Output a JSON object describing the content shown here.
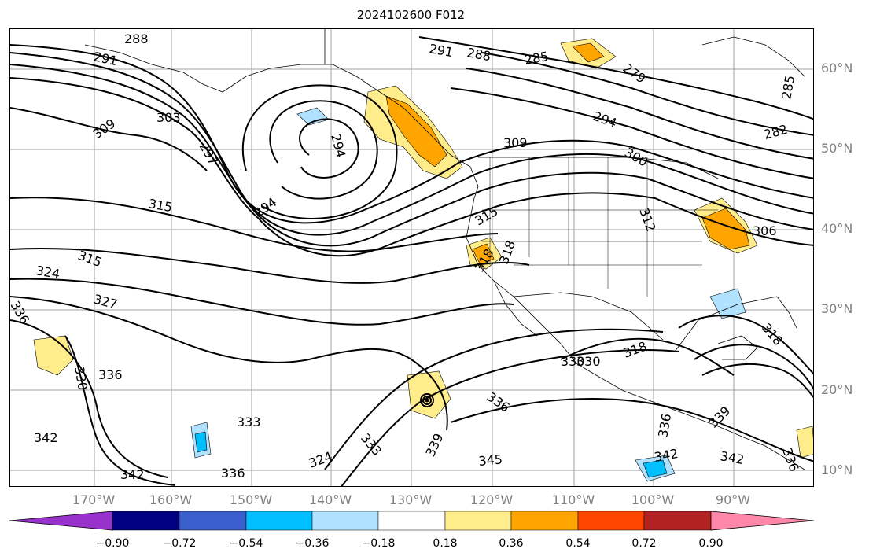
{
  "title": "2024102600 F012",
  "latitude_labels": [
    "60°N",
    "50°N",
    "40°N",
    "30°N",
    "20°N",
    "10°N"
  ],
  "longitude_labels": [
    "170°W",
    "160°W",
    "150°W",
    "140°W",
    "130°W",
    "120°W",
    "110°W",
    "100°W",
    "90°W"
  ],
  "colorbar": {
    "tick_labels": [
      "−0.90",
      "−0.72",
      "−0.54",
      "−0.36",
      "−0.18",
      "0.18",
      "0.36",
      "0.54",
      "0.72",
      "0.90"
    ],
    "colors": [
      "#9932cc",
      "#000080",
      "#3a5fcd",
      "#00bfff",
      "#b0e2ff",
      "#ffffff",
      "#ffec8b",
      "#ffa500",
      "#ff4500",
      "#b22222",
      "#ff88aa"
    ]
  },
  "contour_labels": [
    "288",
    "291",
    "291",
    "288",
    "285",
    "279",
    "285",
    "282",
    "309",
    "303",
    "297",
    "294",
    "294",
    "309",
    "300",
    "294",
    "312",
    "306",
    "315",
    "315",
    "318",
    "315",
    "324",
    "327",
    "330",
    "336",
    "330",
    "336",
    "333",
    "336",
    "324",
    "333",
    "339",
    "345",
    "342",
    "336",
    "342",
    "318",
    "330",
    "318",
    "336",
    "339",
    "342",
    "318",
    "342",
    "336"
  ],
  "colors": {
    "positive_light": "#ffec8b",
    "positive_mid": "#ffa500",
    "negative_light": "#b0e2ff",
    "negative_mid": "#00bfff",
    "contour": "#000000",
    "gridline": "#a0a0a0",
    "tick_label": "#808080"
  }
}
